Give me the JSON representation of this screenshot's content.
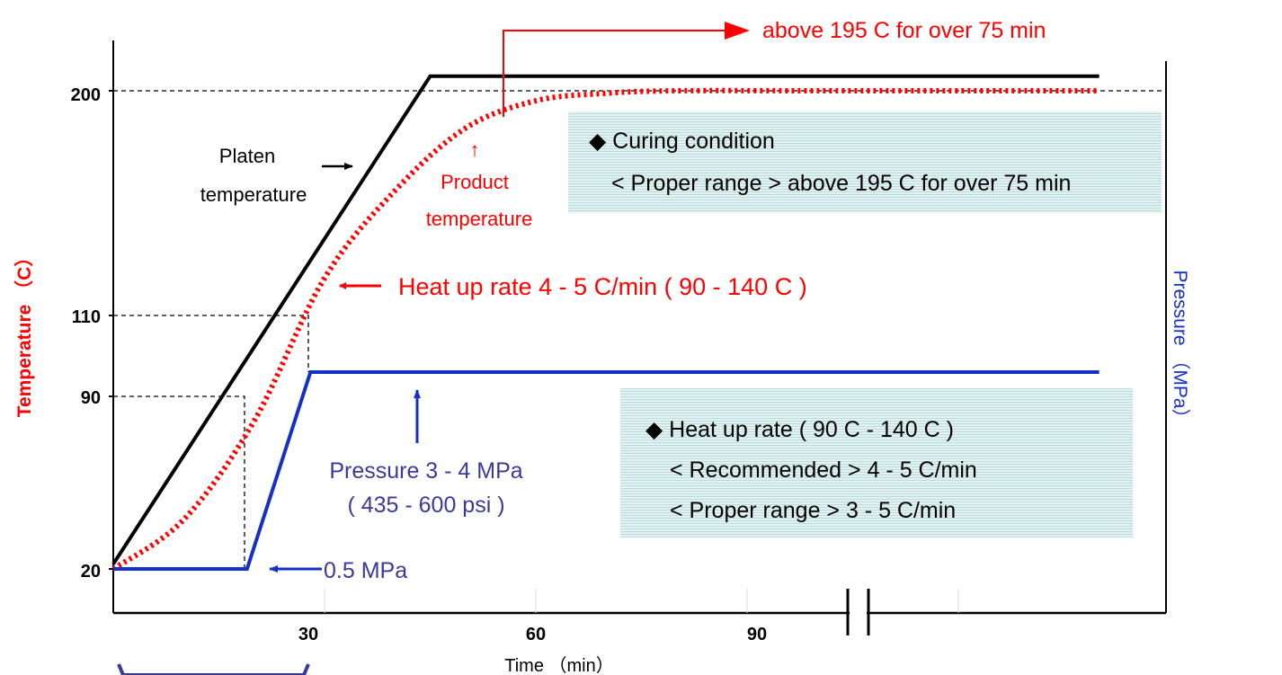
{
  "chart_data": {
    "type": "line",
    "xlabel": "Time （min）",
    "ylabel": "Temperature （C）",
    "y2label": "Pressure （MPa）",
    "x_ticks": [
      "30",
      "60",
      "90"
    ],
    "y_ticks": [
      "20",
      "90",
      "110",
      "200"
    ],
    "series": [
      {
        "name": "Platen temperature",
        "color": "#000000",
        "style": "solid",
        "x": [
          0,
          45,
          140
        ],
        "y": [
          22,
          208,
          208
        ]
      },
      {
        "name": "Product temperature",
        "color": "#ff0000",
        "style": "dotted",
        "x": [
          0,
          10,
          20,
          30,
          40,
          50,
          60,
          70,
          80,
          100,
          120,
          140
        ],
        "y": [
          20,
          40,
          80,
          125,
          160,
          185,
          196,
          199,
          200,
          200,
          200,
          200
        ]
      },
      {
        "name": "Pressure",
        "color": "#1530c8",
        "style": "solid",
        "x": [
          0,
          19,
          28,
          140
        ],
        "y": [
          20,
          20,
          96,
          96
        ]
      }
    ],
    "annotations": {
      "cure_time": "above 195 C for over 75 min",
      "platen_label": "Platen temperature",
      "platen_line1": "Platen",
      "platen_line2": "temperature",
      "product_arrow": "↑",
      "product_line1": "Product",
      "product_line2": "temperature",
      "heat_rate": "Heat up rate  4 - 5 C/min ( 90  - 140 C )",
      "pressure_line1": "Pressure 3 - 4 MPa",
      "pressure_line2": "( 435 - 600 psi )",
      "initial_pressure": "0.5 MPa"
    },
    "info_boxes": {
      "curing_title": "◆ Curing condition",
      "curing_range": "< Proper range >   above 195 C for over 75 min",
      "heat_title": "◆ Heat up rate ( 90 C - 140 C )",
      "heat_recommended": "< Recommended >  4 - 5 C/min",
      "heat_proper": "< Proper range >     3 - 5 C/min"
    },
    "colors": {
      "temperature_axis": "#ff0000",
      "pressure_axis": "#1530c8",
      "box_fill": "#d7ecec"
    }
  }
}
